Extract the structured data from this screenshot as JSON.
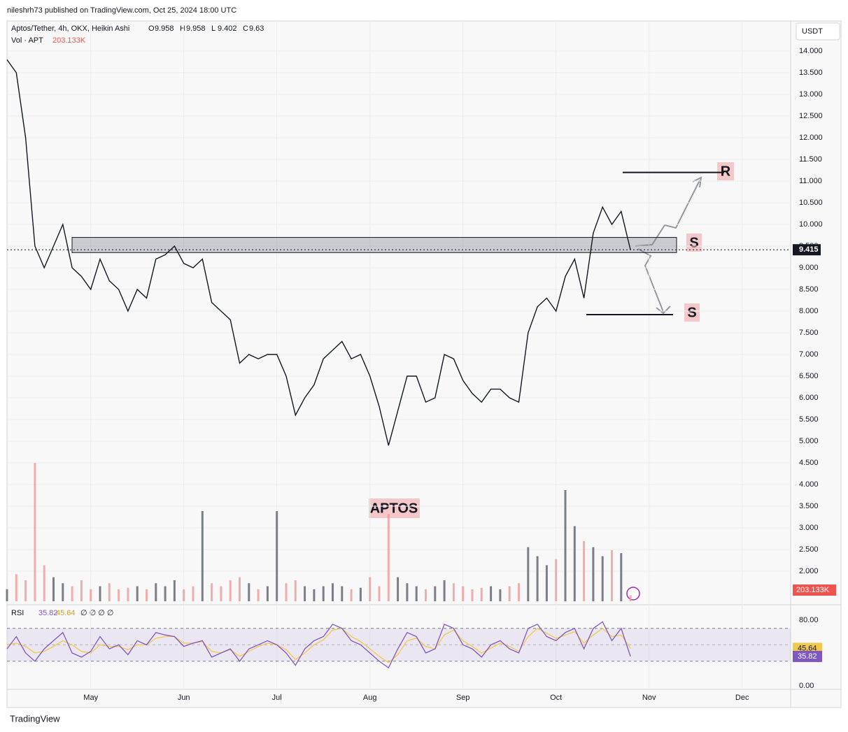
{
  "publisher": "nileshrh73 published on TradingView.com, Oct 25, 2024 18:00 UTC",
  "footer": "TradingView",
  "chart_data": {
    "type": "line",
    "title": "Aptos/Tether, 4h, OKX, Heikin Ashi",
    "ohlc": [
      {
        "label": "O",
        "value": 9.958
      },
      {
        "label": "H",
        "value": 9.958
      },
      {
        "label": "L",
        "value": 9.402
      },
      {
        "label": "C",
        "value": 9.63
      }
    ],
    "color": "#131722",
    "axis_unit": "USDT",
    "categories": [
      null,
      null,
      null,
      null,
      null,
      null,
      null,
      null,
      null,
      "May",
      null,
      null,
      null,
      null,
      null,
      null,
      null,
      null,
      null,
      "Jun",
      null,
      null,
      null,
      null,
      null,
      null,
      null,
      null,
      null,
      "Jul",
      null,
      null,
      null,
      null,
      null,
      null,
      null,
      null,
      null,
      "Aug",
      null,
      null,
      null,
      null,
      null,
      null,
      null,
      null,
      null,
      "Sep",
      null,
      null,
      null,
      null,
      null,
      null,
      null,
      null,
      null,
      "Oct",
      null,
      null,
      null,
      null,
      null,
      null,
      null,
      null,
      null,
      "Nov",
      null,
      null,
      null,
      null,
      null,
      null,
      null,
      null,
      null,
      "Dec",
      null,
      null,
      null,
      null,
      null
    ],
    "values": [
      13.8,
      13.5,
      12,
      9.5,
      9.0,
      9.5,
      10.0,
      9.0,
      8.8,
      8.5,
      9.2,
      8.7,
      8.5,
      8.0,
      8.5,
      8.3,
      9.2,
      9.3,
      9.5,
      9.1,
      9.0,
      9.2,
      8.2,
      8.0,
      7.8,
      6.8,
      7.0,
      6.9,
      7.0,
      7.0,
      6.5,
      5.6,
      6.0,
      6.3,
      6.9,
      7.1,
      7.3,
      6.9,
      7.0,
      6.5,
      5.8,
      4.9,
      5.7,
      6.5,
      6.5,
      5.9,
      6.0,
      7.0,
      6.9,
      6.4,
      6.1,
      5.9,
      6.2,
      6.2,
      6.0,
      5.9,
      7.5,
      8.1,
      8.3,
      8.0,
      8.8,
      9.2,
      8.3,
      9.8,
      10.4,
      10.0,
      10.3,
      9.415,
      null,
      null,
      null,
      null,
      null,
      null,
      null,
      null,
      null,
      null,
      null,
      null,
      null,
      null,
      null,
      null,
      null
    ],
    "ylim": [
      1.306,
      14.645
    ],
    "yticks": [
      {
        "value": 2,
        "label": "2.000"
      },
      {
        "value": 2.5,
        "label": "2.500"
      },
      {
        "value": 3,
        "label": "3.000"
      },
      {
        "value": 3.5,
        "label": "3.500"
      },
      {
        "value": 4,
        "label": "4.000"
      },
      {
        "value": 4.5,
        "label": "4.500"
      },
      {
        "value": 5,
        "label": "5.000"
      },
      {
        "value": 5.5,
        "label": "5.500"
      },
      {
        "value": 6,
        "label": "6.000"
      },
      {
        "value": 6.5,
        "label": "6.500"
      },
      {
        "value": 7,
        "label": "7.000"
      },
      {
        "value": 7.5,
        "label": "7.500"
      },
      {
        "value": 8,
        "label": "8.000"
      },
      {
        "value": 8.5,
        "label": "8.500"
      },
      {
        "value": 9,
        "label": "9.000"
      },
      {
        "value": 9.5,
        "label": "9.500"
      },
      {
        "value": 10,
        "label": "10.000"
      },
      {
        "value": 10.5,
        "label": "10.500"
      },
      {
        "value": 11,
        "label": "11.000"
      },
      {
        "value": 11.5,
        "label": "11.500"
      },
      {
        "value": 12,
        "label": "12.000"
      },
      {
        "value": 12.5,
        "label": "12.500"
      },
      {
        "value": 13,
        "label": "13.000"
      },
      {
        "value": 13.5,
        "label": "13.500"
      },
      {
        "value": 14,
        "label": "14.000"
      }
    ],
    "grid": true,
    "zone": [
      9.35,
      9.7
    ],
    "levels": [
      11.2,
      7.92
    ],
    "annotations": [
      "R",
      "S",
      "S",
      "APTOS"
    ],
    "volume": {
      "label": "Vol · APT",
      "last_label": "203.133K",
      "up_color": "#5d606b",
      "down_color": "#ef9a9a",
      "vlim": [
        0,
        5000
      ],
      "values": [
        400,
        900,
        700,
        4600,
        1200,
        800,
        600,
        500,
        700,
        400,
        500,
        600,
        400,
        450,
        500,
        400,
        600,
        500,
        700,
        400,
        500,
        3000,
        600,
        500,
        700,
        800,
        600,
        400,
        500,
        3000,
        600,
        700,
        500,
        400,
        500,
        600,
        500,
        400,
        450,
        800,
        500,
        2900,
        800,
        600,
        500,
        400,
        500,
        700,
        600,
        500,
        400,
        450,
        500,
        400,
        500,
        600,
        1800,
        1500,
        1200,
        1400,
        3700,
        2500,
        2000,
        1800,
        1500,
        1700,
        1600,
        203.133,
        null,
        null,
        null,
        null,
        null,
        null,
        null,
        null,
        null,
        null,
        null,
        null,
        null,
        null,
        null,
        null,
        null
      ]
    },
    "rsi": {
      "label": "RSI",
      "extra": "∅ ∅ ∅ ∅",
      "color": "#7e57c2",
      "ma_color": "#f2c94c",
      "values": [
        45,
        60,
        40,
        30,
        45,
        55,
        65,
        40,
        35,
        42,
        60,
        45,
        50,
        38,
        55,
        50,
        65,
        62,
        60,
        48,
        52,
        55,
        35,
        40,
        45,
        30,
        45,
        50,
        55,
        50,
        40,
        25,
        45,
        55,
        60,
        75,
        70,
        55,
        50,
        40,
        30,
        22,
        45,
        65,
        60,
        40,
        45,
        75,
        70,
        50,
        45,
        35,
        50,
        55,
        45,
        40,
        70,
        75,
        60,
        55,
        65,
        70,
        45,
        70,
        78,
        55,
        70,
        35.82,
        null,
        null,
        null,
        null,
        null,
        null,
        null,
        null,
        null,
        null,
        null,
        null,
        null,
        null,
        null,
        null,
        null
      ],
      "ma_values": [
        50,
        52,
        48,
        40,
        42,
        48,
        55,
        50,
        42,
        40,
        50,
        48,
        48,
        44,
        50,
        50,
        58,
        60,
        60,
        52,
        52,
        54,
        42,
        40,
        44,
        36,
        42,
        48,
        52,
        50,
        44,
        32,
        40,
        50,
        56,
        68,
        70,
        60,
        54,
        45,
        36,
        28,
        38,
        55,
        58,
        48,
        45,
        62,
        68,
        55,
        48,
        40,
        46,
        52,
        48,
        42,
        60,
        70,
        64,
        58,
        62,
        66,
        52,
        62,
        70,
        60,
        62,
        45.64,
        null,
        null,
        null,
        null,
        null,
        null,
        null,
        null,
        null,
        null,
        null,
        null,
        null,
        null,
        null,
        null,
        null
      ],
      "ylim": [
        -3.4,
        96.2
      ],
      "yticks": [
        {
          "value": 80,
          "label": "80.00"
        },
        {
          "value": 0,
          "label": "0.00"
        }
      ],
      "bands": [
        70,
        50,
        30
      ]
    }
  }
}
